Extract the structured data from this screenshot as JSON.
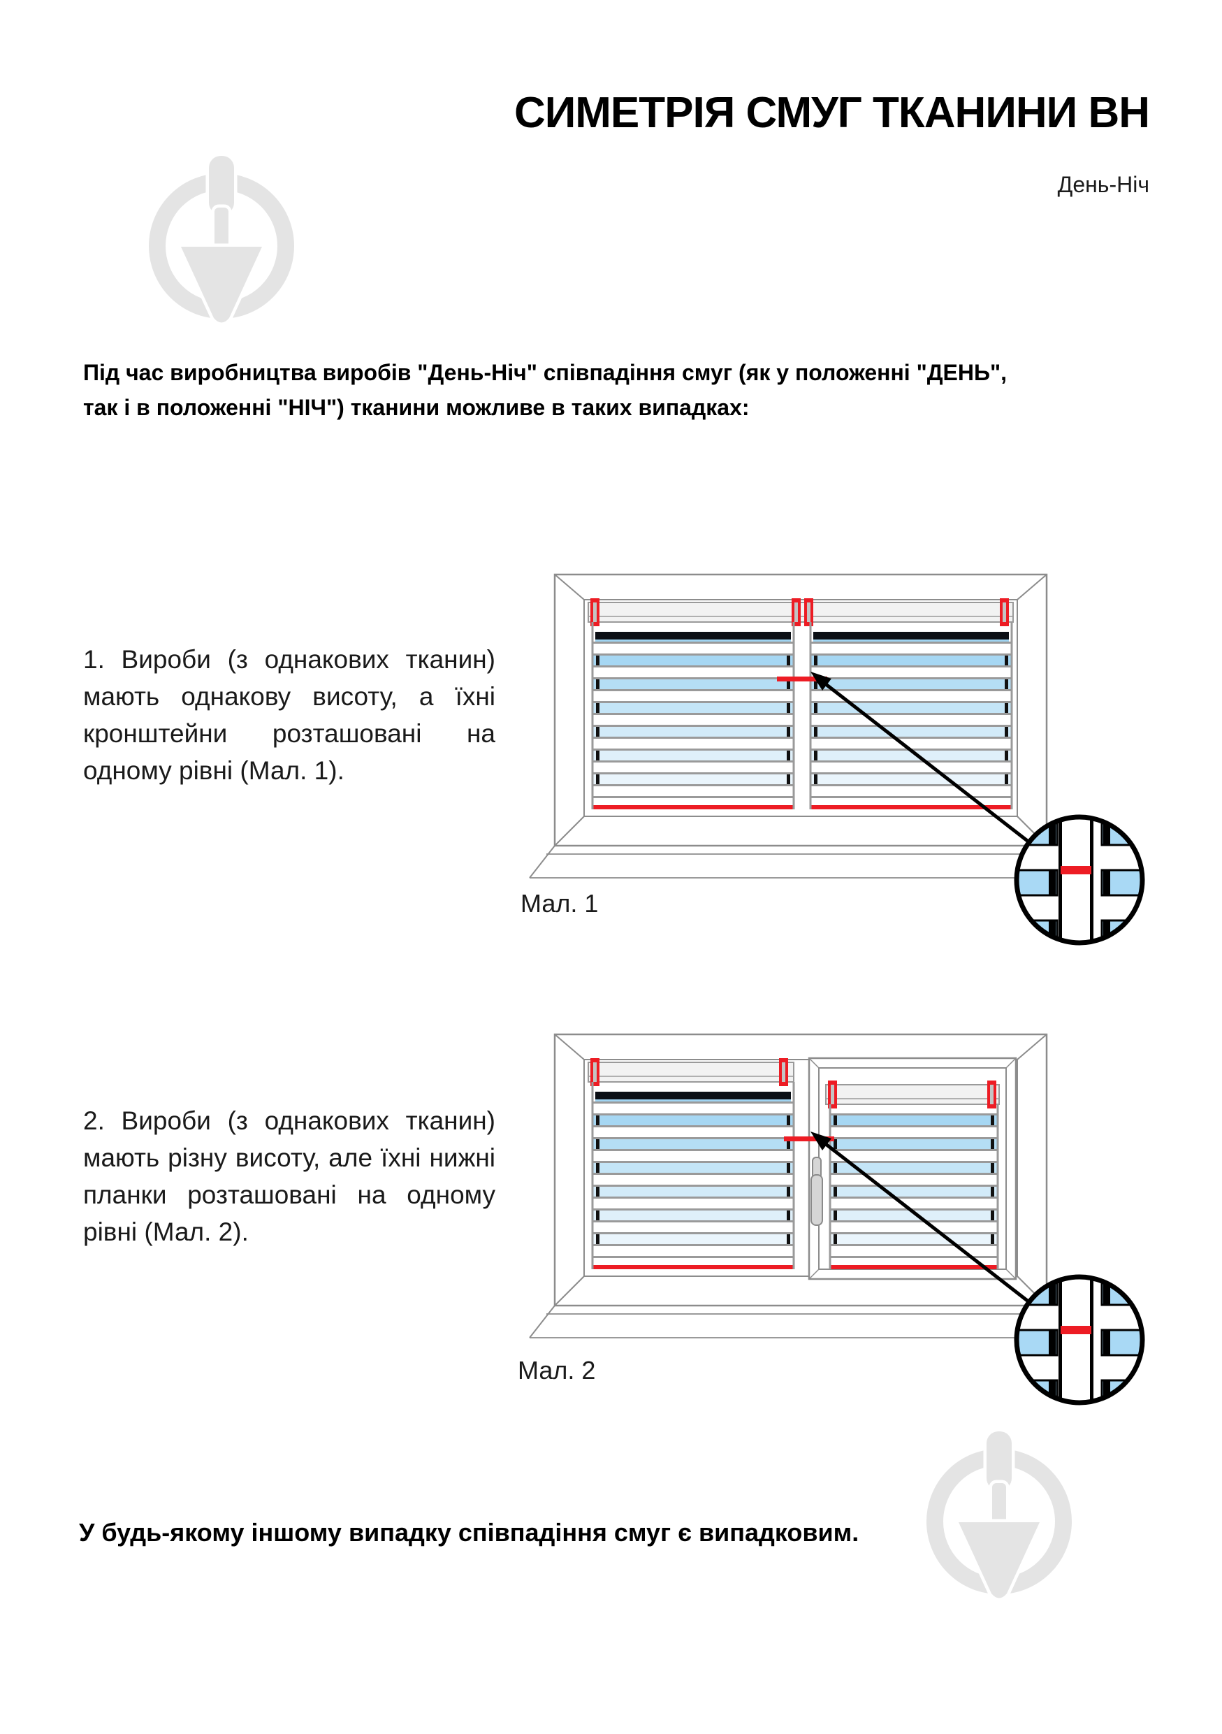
{
  "header": {
    "title": "СИМЕТРІЯ СМУГ ТКАНИНИ ВН",
    "subtitle": "День-Ніч"
  },
  "content": {
    "intro_line1": "Під час виробництва виробів \"День-Ніч\" співпадіння смуг (як у положенні \"ДЕНЬ\",",
    "intro_line2": "так і в положенні \"НІЧ\") тканини можливе в таких випадках:",
    "item1": "1. Вироби (з однакових тканин) мають однакову висоту, а їхні кронштейни розташовані на одному рівні (Мал. 1).",
    "item2": "2. Вироби (з однакових тканин) мають різну висоту, але їхні нижні планки розташовані на одному рівні (Мал. 2).",
    "footer": "У будь-якому іншому випадку співпадіння смуг є випадковим."
  },
  "figures": {
    "fig1_caption": "Мал. 1",
    "fig2_caption": "Мал. 2"
  },
  "icons": {
    "watermark": "plumb-trowel-circle-logo",
    "magnifier": "zoom-detail-circle-icon",
    "arrow": "pointer-arrow-icon",
    "bracket": "red-mounting-bracket"
  },
  "colors": {
    "accent_red": "#ed1c24",
    "dark_stripe": "#0b0f15",
    "dark_stripe_edge": "#9fd3f0",
    "stripe_blues": [
      "#a6d7f3",
      "#b5def5",
      "#c4e5f7",
      "#d2ebf9",
      "#dff0fa",
      "#eaf5fc"
    ],
    "magnifier_blue": "#a9d9f5",
    "frame_gray": "#8c8c8c",
    "rail_gray": "#9a9a9a",
    "rail_fill": "#f2f2f2",
    "bracket_slot": "#c4c4c4",
    "handle_fill": "#d6d6d6",
    "handle_stroke": "#8a8a8a",
    "watermark_gray": "#e4e4e4",
    "text_black": "#000000"
  }
}
